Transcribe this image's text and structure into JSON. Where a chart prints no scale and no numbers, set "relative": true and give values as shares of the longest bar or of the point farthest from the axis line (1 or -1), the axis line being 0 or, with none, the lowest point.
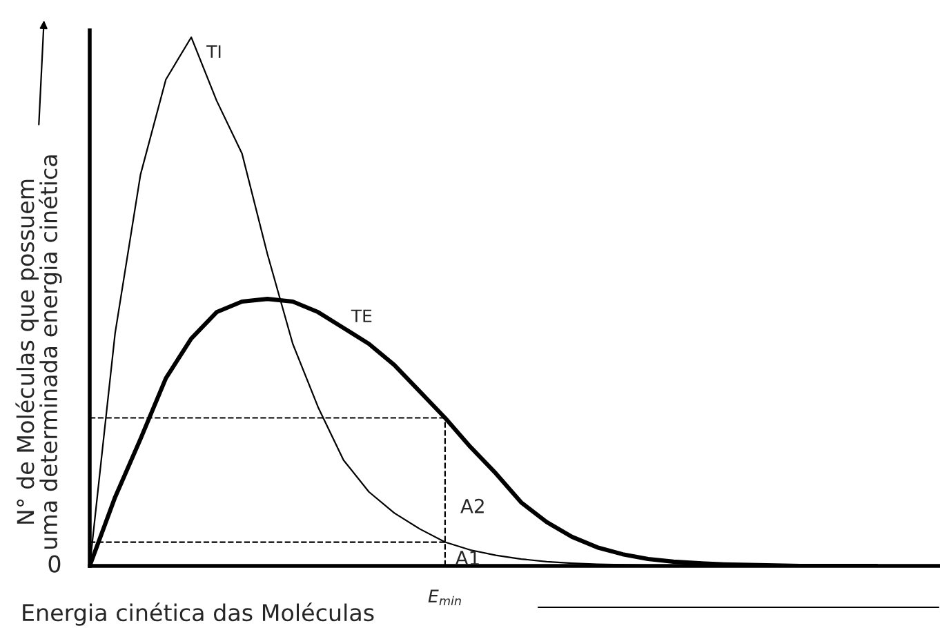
{
  "chart_data": {
    "type": "line",
    "relative": true,
    "xlabel": "Energia cinética das Moléculas",
    "ylabel": "N° de Moléculas que possuem\numa determinada energia cinética",
    "categories": [
      null,
      null,
      null,
      null,
      null,
      null,
      null,
      null,
      null,
      null,
      null,
      null,
      null,
      null,
      null,
      null,
      null,
      null,
      null,
      null,
      null,
      null,
      null,
      null,
      null,
      null,
      null,
      null,
      null,
      null,
      null,
      null
    ],
    "series": [
      {
        "color": "#000000",
        "line_style": "solid",
        "values": [
          0,
          0.44,
          0.74,
          0.92,
          1.0,
          0.88,
          0.78,
          0.59,
          0.42,
          0.3,
          0.2,
          0.14,
          0.1,
          0.07,
          0.045,
          0.03,
          0.02,
          0.013,
          0.008,
          0.005,
          0.003,
          0.002,
          0.001,
          null,
          null,
          null,
          null,
          null,
          null,
          null,
          null,
          null
        ]
      },
      {
        "color": "#000000",
        "line_style": "solid",
        "values": [
          0,
          0.13,
          0.24,
          0.355,
          0.43,
          0.48,
          0.5,
          0.505,
          0.5,
          0.48,
          0.45,
          0.42,
          0.38,
          0.33,
          0.28,
          0.225,
          0.175,
          0.12,
          0.083,
          0.055,
          0.035,
          0.022,
          0.013,
          0.008,
          0.005,
          0.003,
          0.002,
          0.001,
          0,
          0,
          0,
          0
        ]
      },
      {
        "color": "#000000",
        "line_style": "dashed",
        "values": [
          0.28,
          0.28,
          0.28,
          0.28,
          0.28,
          0.28,
          0.28,
          0.28,
          0.28,
          0.28,
          0.28,
          0.28,
          0.28,
          0.28,
          0.28,
          null,
          null,
          null,
          null,
          null,
          null,
          null,
          null,
          null,
          null,
          null,
          null,
          null,
          null,
          null,
          null,
          null
        ]
      },
      {
        "color": "#000000",
        "line_style": "dashed",
        "values": [
          0.045,
          0.045,
          0.045,
          0.045,
          0.045,
          0.045,
          0.045,
          0.045,
          0.045,
          0.045,
          0.045,
          0.045,
          0.045,
          0.045,
          0.045,
          null,
          null,
          null,
          null,
          null,
          null,
          null,
          null,
          null,
          null,
          null,
          null,
          null,
          null,
          null,
          null,
          null
        ]
      }
    ],
    "annotations": [
      "TI",
      "TE",
      "A2",
      "A1",
      "0",
      "E$_{min}$"
    ]
  }
}
